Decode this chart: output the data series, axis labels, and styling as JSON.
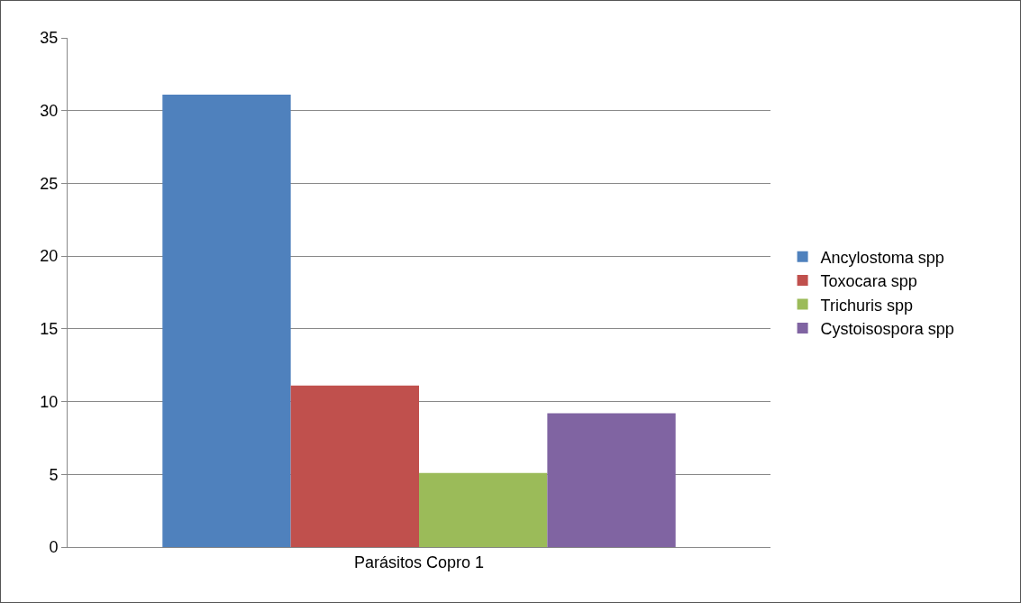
{
  "chart_data": {
    "type": "bar",
    "categories": [
      "Parásitos Copro 1"
    ],
    "series": [
      {
        "name": "Ancylostoma spp",
        "color": "#4f81bd",
        "values": [
          31.1
        ]
      },
      {
        "name": "Toxocara spp",
        "color": "#c0504d",
        "values": [
          11.1
        ]
      },
      {
        "name": "Trichuris spp",
        "color": "#9bbb59",
        "values": [
          5.1
        ]
      },
      {
        "name": "Cystoisospora spp",
        "color": "#8064a2",
        "values": [
          9.2
        ]
      }
    ],
    "ylim": [
      0,
      35
    ],
    "yticks": [
      0,
      5,
      10,
      15,
      20,
      25,
      30,
      35
    ],
    "grid": "y",
    "legend": "right"
  }
}
